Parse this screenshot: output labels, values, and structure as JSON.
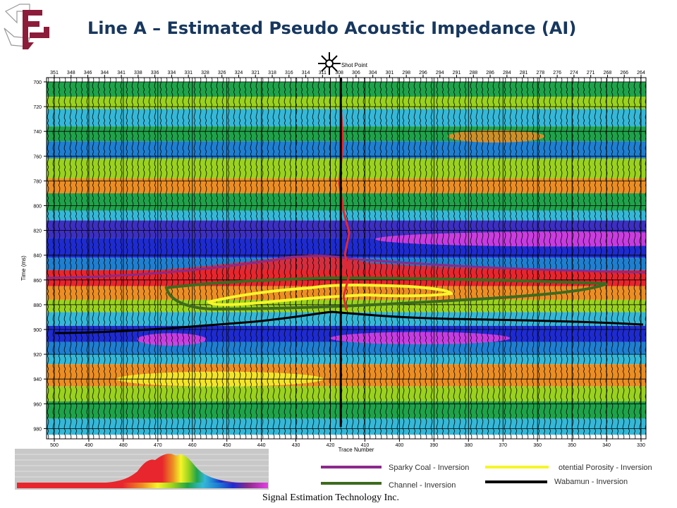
{
  "slide": {
    "title": "Line A – Estimated Pseudo Acoustic Impedance (AI)",
    "footer": "Signal Estimation Technology Inc."
  },
  "chart_data": {
    "type": "heatmap",
    "title": "",
    "shot_point_label": "Shot Point",
    "ylabel": "Time (ms)",
    "xlabel": "Trace Number",
    "ylim": [
      700,
      985
    ],
    "y_ticks": [
      "700",
      "720",
      "740",
      "760",
      "780",
      "800",
      "820",
      "840",
      "860",
      "880",
      "900",
      "920",
      "940",
      "960",
      "980"
    ],
    "top_ticks": [
      "351",
      "348",
      "346",
      "344",
      "341",
      "338",
      "336",
      "334",
      "331",
      "328",
      "326",
      "324",
      "321",
      "318",
      "316",
      "314",
      "311",
      "308",
      "306",
      "304",
      "301",
      "298",
      "296",
      "294",
      "291",
      "288",
      "286",
      "284",
      "281",
      "278",
      "276",
      "274",
      "271",
      "268",
      "266",
      "264"
    ],
    "bottom_ticks": [
      "500",
      "490",
      "480",
      "470",
      "460",
      "450",
      "440",
      "430",
      "420",
      "410",
      "400",
      "390",
      "380",
      "370",
      "360",
      "350",
      "340",
      "330"
    ],
    "well_trace": 417,
    "horizons": [
      {
        "name": "Sparky Coal - Inversion",
        "color": "#8b2a8b"
      },
      {
        "name": "otential Porosity - Inversion",
        "color": "#f5f52a"
      },
      {
        "name": "Channel - Inversion",
        "color": "#3d6b1f"
      },
      {
        "name": "Wabamun - Inversion",
        "color": "#000000"
      }
    ],
    "bands": [
      {
        "from": 700,
        "to": 712,
        "color": "#1fa34a"
      },
      {
        "from": 712,
        "to": 722,
        "color": "#9ad21e"
      },
      {
        "from": 722,
        "to": 736,
        "color": "#35b8d8"
      },
      {
        "from": 736,
        "to": 748,
        "color": "#1fa34a"
      },
      {
        "from": 748,
        "to": 762,
        "color": "#1f7fd1"
      },
      {
        "from": 762,
        "to": 778,
        "color": "#9ad21e"
      },
      {
        "from": 778,
        "to": 790,
        "color": "#ec8e23"
      },
      {
        "from": 790,
        "to": 804,
        "color": "#1fa34a"
      },
      {
        "from": 804,
        "to": 812,
        "color": "#35b8d8"
      },
      {
        "from": 812,
        "to": 826,
        "color": "#3c2fc1"
      },
      {
        "from": 826,
        "to": 842,
        "color": "#1e2bd0"
      },
      {
        "from": 842,
        "to": 852,
        "color": "#1f7fd1"
      },
      {
        "from": 852,
        "to": 865,
        "color": "#e8262d"
      },
      {
        "from": 865,
        "to": 876,
        "color": "#ec8e23"
      },
      {
        "from": 876,
        "to": 886,
        "color": "#9ad21e"
      },
      {
        "from": 886,
        "to": 897,
        "color": "#35b8d8"
      },
      {
        "from": 897,
        "to": 910,
        "color": "#1e2bd0"
      },
      {
        "from": 910,
        "to": 920,
        "color": "#1f7fd1"
      },
      {
        "from": 920,
        "to": 928,
        "color": "#35b8d8"
      },
      {
        "from": 928,
        "to": 946,
        "color": "#ec8e23"
      },
      {
        "from": 946,
        "to": 958,
        "color": "#9ad21e"
      },
      {
        "from": 958,
        "to": 972,
        "color": "#1fa34a"
      },
      {
        "from": 972,
        "to": 985,
        "color": "#35b8d8"
      }
    ],
    "blobs": [
      {
        "trace": 352,
        "t": 827,
        "wtrace": 55,
        "wt": 6,
        "color": "#e43fe4"
      },
      {
        "trace": 394,
        "t": 907,
        "wtrace": 26,
        "wt": 5,
        "color": "#e43fe4"
      },
      {
        "trace": 466,
        "t": 908,
        "wtrace": 10,
        "wt": 5,
        "color": "#e43fe4"
      },
      {
        "trace": 452,
        "t": 940,
        "wtrace": 30,
        "wt": 6,
        "color": "#f5f52a"
      },
      {
        "trace": 372,
        "t": 744,
        "wtrace": 14,
        "wt": 5,
        "color": "#ec8e23"
      }
    ]
  }
}
